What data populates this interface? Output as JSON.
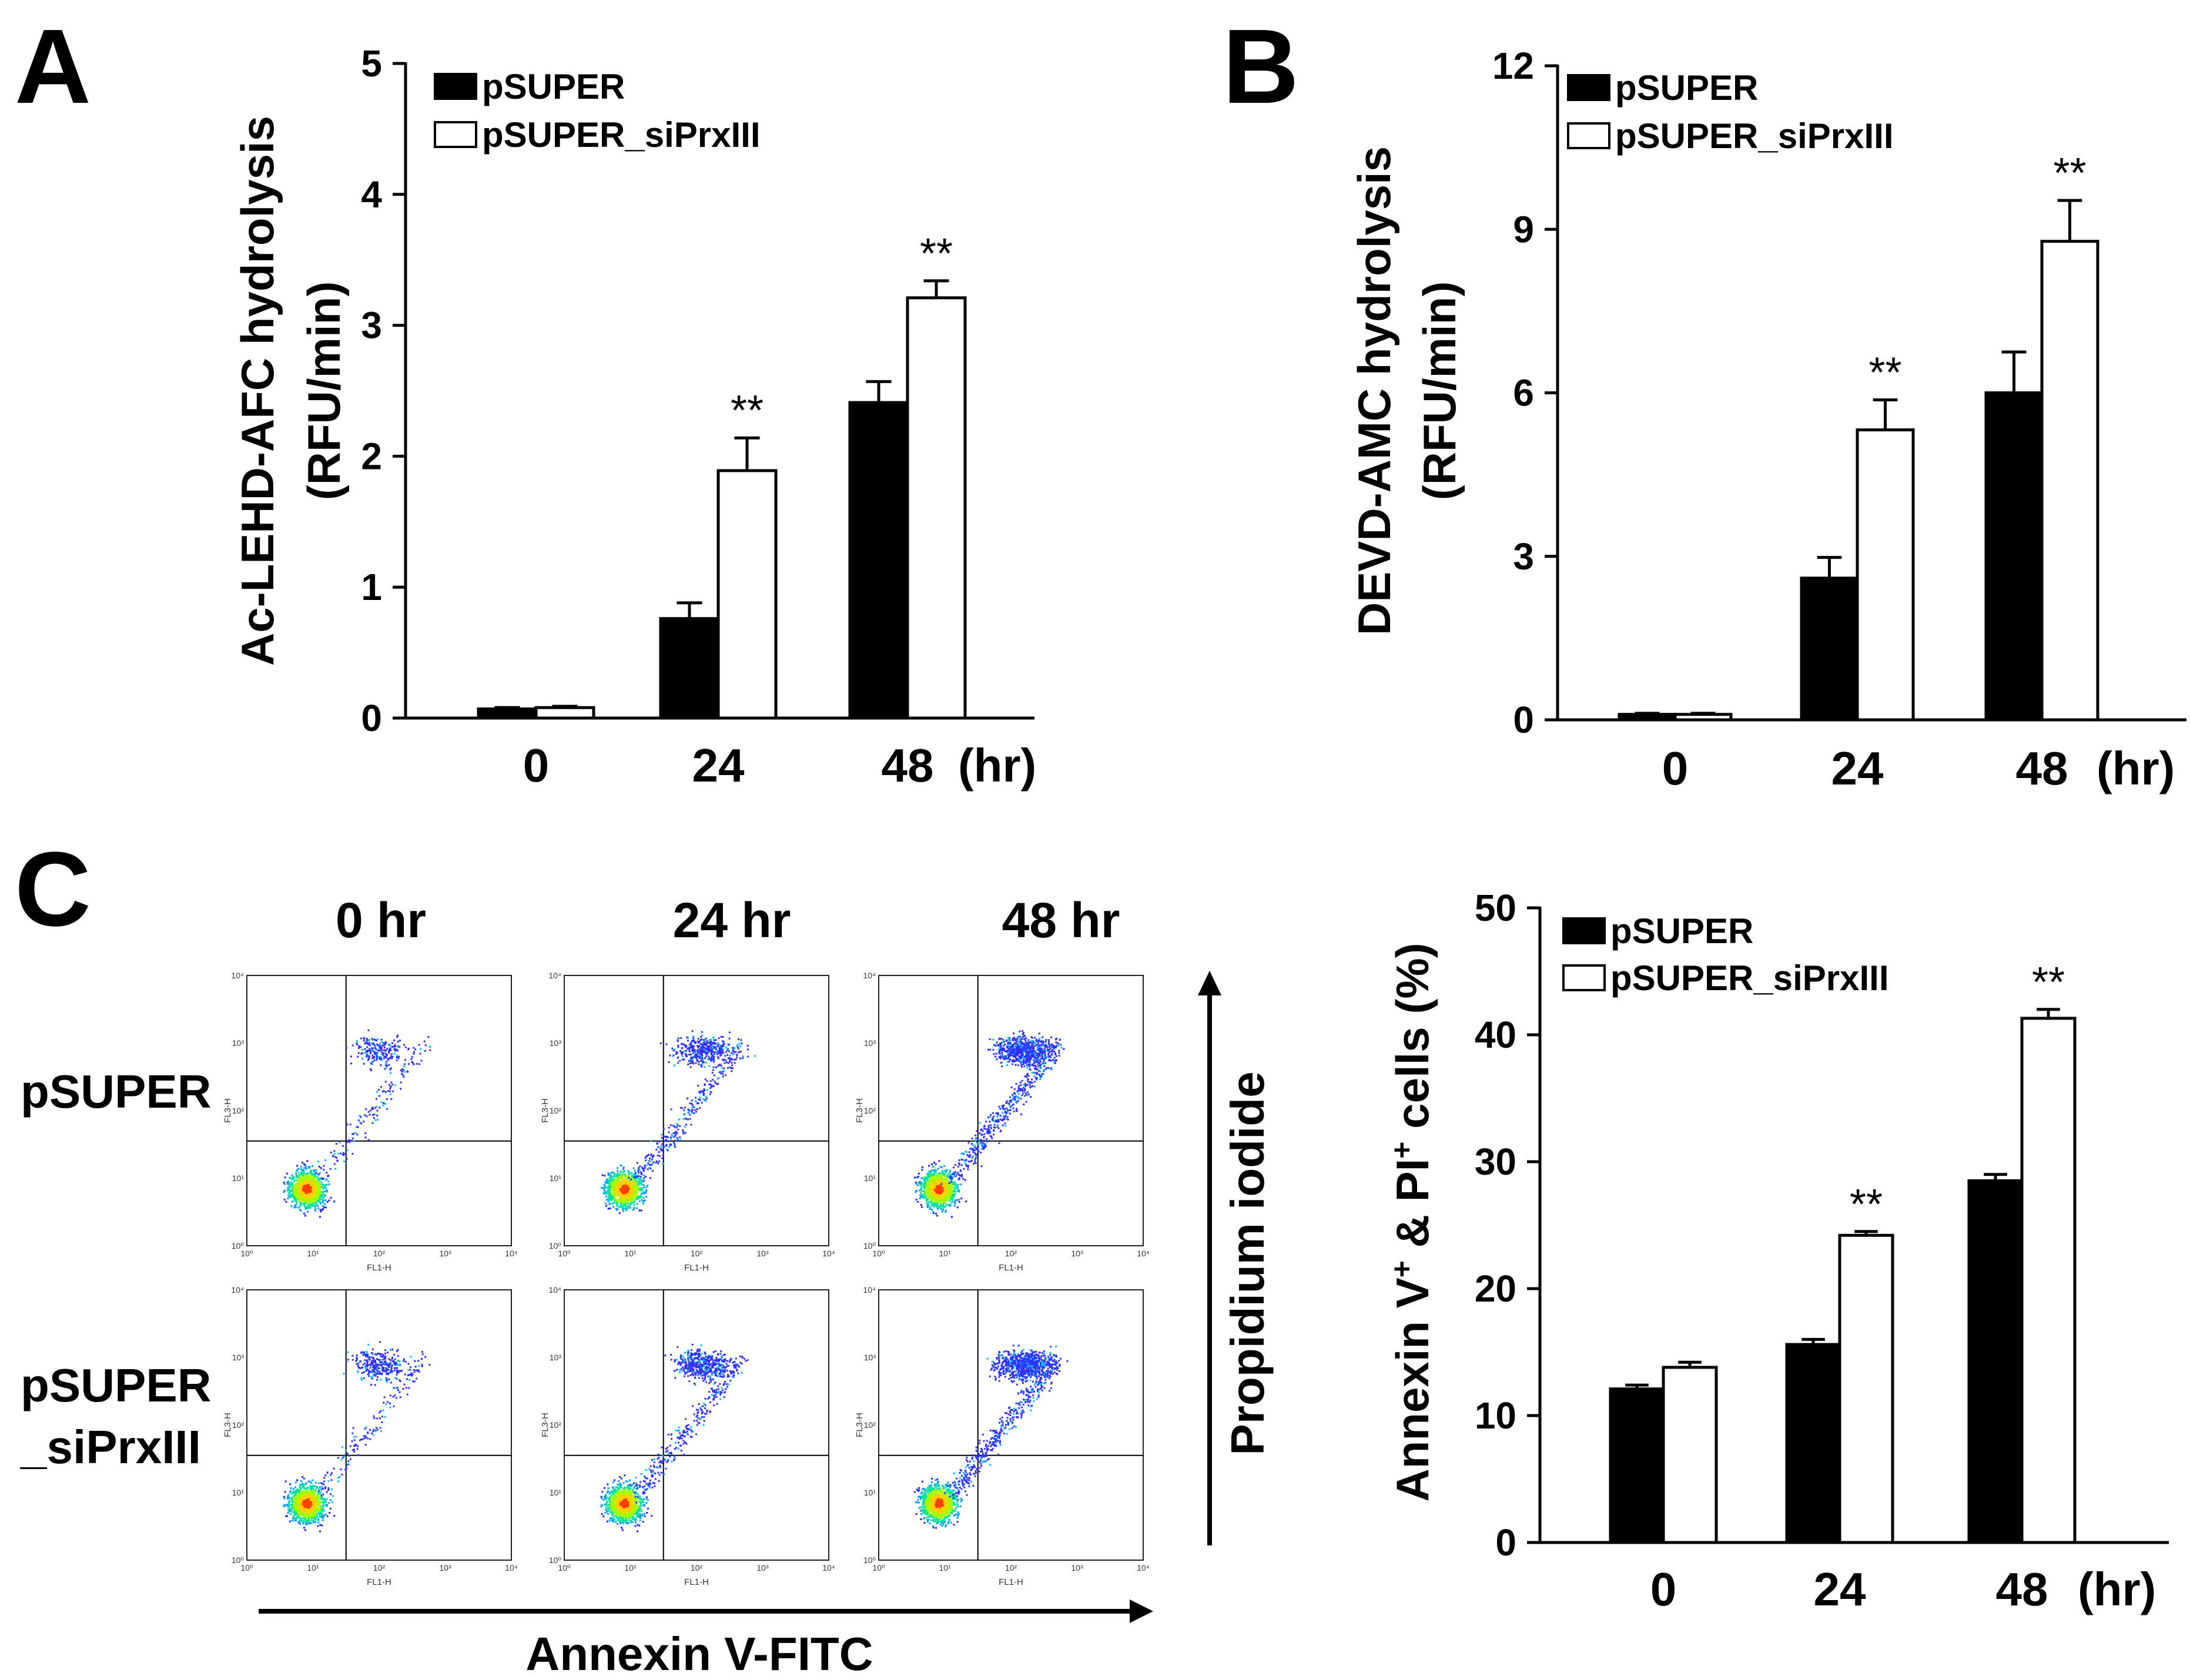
{
  "panels": {
    "A": "A",
    "B": "B",
    "C": "C"
  },
  "colors": {
    "series1_fill": "#000000",
    "series2_fill": "#ffffff",
    "axis": "#000000"
  },
  "legend_labels": [
    "pSUPER",
    "pSUPER_siPrxIII"
  ],
  "x_unit": "(hr)",
  "significance_marker": "**",
  "chart_data": [
    {
      "panel": "A",
      "type": "bar",
      "title": "",
      "categories": [
        "0",
        "24",
        "48"
      ],
      "series": [
        {
          "name": "pSUPER",
          "values": [
            0.07,
            0.76,
            2.41
          ],
          "errors": [
            0.01,
            0.12,
            0.16
          ]
        },
        {
          "name": "pSUPER_siPrxIII",
          "values": [
            0.08,
            1.89,
            3.21
          ],
          "errors": [
            0.01,
            0.25,
            0.13
          ]
        }
      ],
      "significance": [
        "",
        "**",
        "**"
      ],
      "ylabel_line1": "Ac-LEHD-AFC hydrolysis",
      "ylabel_line2": "(RFU/min)",
      "ylim": [
        0,
        5
      ],
      "yticks": [
        0,
        1,
        2,
        3,
        4,
        5
      ],
      "legend_position": "top-left",
      "grid": false
    },
    {
      "panel": "B",
      "type": "bar",
      "title": "",
      "categories": [
        "0",
        "24",
        "48"
      ],
      "series": [
        {
          "name": "pSUPER",
          "values": [
            0.1,
            2.6,
            6.0
          ],
          "errors": [
            0.02,
            0.38,
            0.75
          ]
        },
        {
          "name": "pSUPER_siPrxIII",
          "values": [
            0.1,
            5.32,
            8.78
          ],
          "errors": [
            0.02,
            0.55,
            0.75
          ]
        }
      ],
      "significance": [
        "",
        "**",
        "**"
      ],
      "ylabel_line1": "DEVD-AMC hydrolysis",
      "ylabel_line2": "(RFU/min)",
      "ylim": [
        0,
        12
      ],
      "yticks": [
        0,
        3,
        6,
        9,
        12
      ],
      "legend_position": "top-left",
      "grid": false
    },
    {
      "panel": "C",
      "type": "bar",
      "title": "",
      "categories": [
        "0",
        "24",
        "48"
      ],
      "series": [
        {
          "name": "pSUPER",
          "values": [
            12.1,
            15.6,
            28.5
          ],
          "errors": [
            0.3,
            0.4,
            0.5
          ]
        },
        {
          "name": "pSUPER_siPrxIII",
          "values": [
            13.8,
            24.2,
            41.3
          ],
          "errors": [
            0.4,
            0.3,
            0.7
          ]
        }
      ],
      "significance": [
        "",
        "**",
        "**"
      ],
      "ylabel": "Annexin V+ & PI+ cells (%)",
      "ylim": [
        0,
        50
      ],
      "yticks": [
        0,
        10,
        20,
        30,
        40,
        50
      ],
      "legend_position": "top-left",
      "grid": false
    }
  ],
  "flow": {
    "col_titles": [
      "0 hr",
      "24 hr",
      "48 hr"
    ],
    "row_labels": [
      [
        "pSUPER"
      ],
      [
        "pSUPER",
        "_siPrxIII"
      ]
    ],
    "x_axis_label": "FL1-H",
    "y_axis_label": "FL3-H",
    "log_ticks": [
      "10⁰",
      "10¹",
      "10²",
      "10³",
      "10⁴"
    ],
    "x_arrow_label": "Annexin V-FITC",
    "y_arrow_label": "Propidium iodide",
    "gates_log": [
      1.5,
      1.55
    ]
  }
}
